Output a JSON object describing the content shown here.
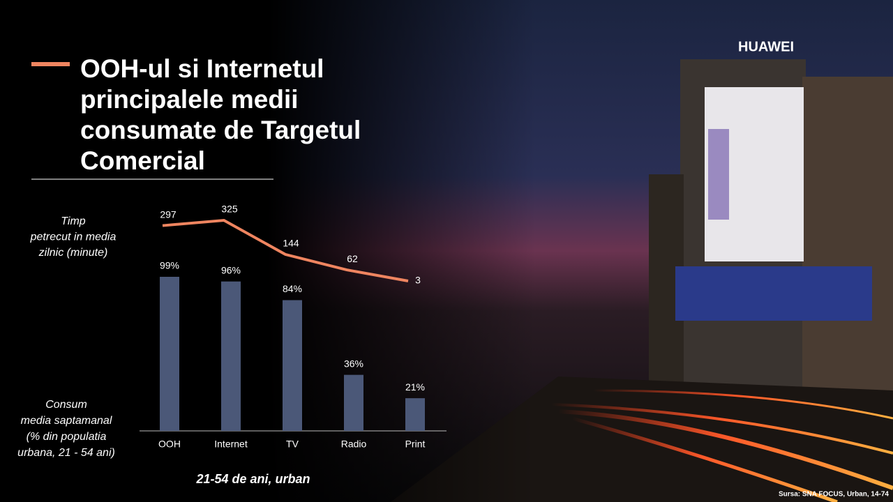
{
  "slide": {
    "title": [
      "OOH-ul si Internetul",
      "principalele medii",
      "consumate de Targetul",
      "Comercial"
    ],
    "line_caption": [
      "Timp",
      "petrecut in media",
      "zilnic  (minute)"
    ],
    "bar_caption": [
      "Consum",
      "media saptamanal",
      "(% din populatia",
      "urbana, 21 - 54 ani)"
    ],
    "footer": "21-54 de ani, urban",
    "source": "Sursa: SNA FOCUS, Urban, 14-74",
    "sign": "HUAWEI"
  },
  "chart_data": {
    "type": "bar-line",
    "categories": [
      "OOH",
      "Internet",
      "TV",
      "Radio",
      "Print"
    ],
    "series": [
      {
        "type": "bar",
        "color": "#4b5878",
        "values": [
          99,
          96,
          84,
          36,
          21
        ],
        "value_labels": [
          "99%",
          "96%",
          "84%",
          "36%",
          "21%"
        ]
      },
      {
        "type": "line",
        "color": "#ef8560",
        "values": [
          297,
          325,
          144,
          62,
          3
        ]
      }
    ]
  }
}
